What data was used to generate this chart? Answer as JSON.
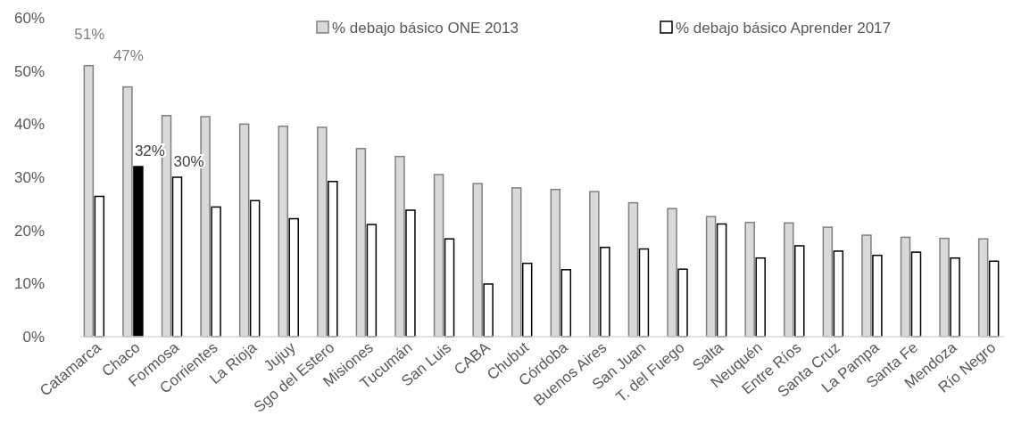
{
  "chart_data": {
    "type": "bar",
    "categories": [
      "Catamarca",
      "Chaco",
      "Formosa",
      "Corrientes",
      "La Rioja",
      "Jujuy",
      "Sgo del Estero",
      "Misiones",
      "Tucumán",
      "San Luis",
      "CABA",
      "Chubut",
      "Córdoba",
      "Buenos Aires",
      "San Juan",
      "T. del Fuego",
      "Salta",
      "Neuquén",
      "Entre Ríos",
      "Santa Cruz",
      "La Pampa",
      "Santa Fe",
      "Mendoza",
      "Río Negro"
    ],
    "series": [
      {
        "name": "% debajo básico ONE 2013",
        "color": "#d9d9d9",
        "values": [
          51,
          47,
          41.6,
          41.4,
          40.0,
          39.6,
          39.4,
          35.4,
          33.9,
          30.5,
          28.8,
          28.0,
          27.7,
          27.3,
          25.2,
          24.1,
          22.6,
          21.5,
          21.4,
          20.6,
          19.1,
          18.7,
          18.5,
          18.4
        ],
        "value_labels": [
          "51%",
          "47%",
          null,
          null,
          null,
          null,
          null,
          null,
          null,
          null,
          null,
          null,
          null,
          null,
          null,
          null,
          null,
          null,
          null,
          null,
          null,
          null,
          null,
          null
        ]
      },
      {
        "name": "% debajo básico Aprender 2017",
        "color": "#ffffff",
        "colors": [
          "#ffffff",
          "#000000",
          "#ffffff",
          "#ffffff",
          "#ffffff",
          "#ffffff",
          "#ffffff",
          "#ffffff",
          "#ffffff",
          "#ffffff",
          "#ffffff",
          "#ffffff",
          "#ffffff",
          "#ffffff",
          "#ffffff",
          "#ffffff",
          "#ffffff",
          "#ffffff",
          "#ffffff",
          "#ffffff",
          "#ffffff",
          "#ffffff",
          "#ffffff",
          "#ffffff"
        ],
        "values": [
          26.4,
          32,
          30,
          24.4,
          25.6,
          22.2,
          29.2,
          21.1,
          23.8,
          18.4,
          9.9,
          13.8,
          12.6,
          16.8,
          16.5,
          12.7,
          21.2,
          14.8,
          17.1,
          16.1,
          15.3,
          15.9,
          14.8,
          14.2
        ],
        "value_labels": [
          null,
          "32%",
          "30%",
          null,
          null,
          null,
          null,
          null,
          null,
          null,
          null,
          null,
          null,
          null,
          null,
          null,
          null,
          null,
          null,
          null,
          null,
          null,
          null,
          null
        ]
      }
    ],
    "ylim": [
      0,
      60
    ],
    "yticks": [
      {
        "value": 0,
        "label": "0%"
      },
      {
        "value": 10,
        "label": "10%"
      },
      {
        "value": 20,
        "label": "20%"
      },
      {
        "value": 30,
        "label": "30%"
      },
      {
        "value": 40,
        "label": "40%"
      },
      {
        "value": 50,
        "label": "50%"
      },
      {
        "value": 60,
        "label": "60%"
      }
    ],
    "grid": false,
    "legend": "top right"
  }
}
